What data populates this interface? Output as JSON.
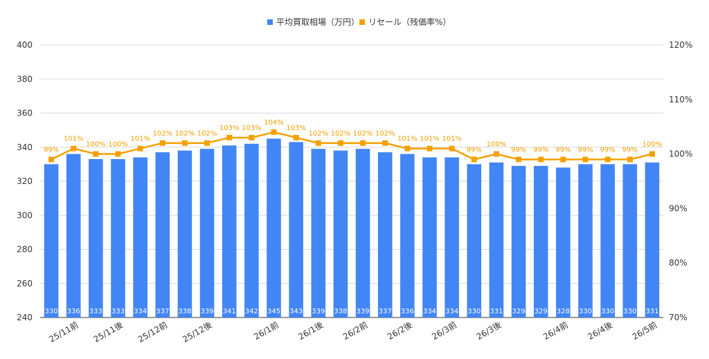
{
  "chart_data": {
    "type": "bar",
    "title": "",
    "legend": {
      "position": "top",
      "items": [
        {
          "label": "平均買取相場（万円）",
          "color": "#4285f4",
          "marker": "square"
        },
        {
          "label": "リセール（残価率%）",
          "color": "#f4a000",
          "marker": "square"
        }
      ]
    },
    "grid": true,
    "y_left": {
      "ticks": [
        "400",
        "380",
        "360",
        "340",
        "320",
        "300",
        "280",
        "260",
        "240"
      ],
      "range": [
        240,
        400
      ]
    },
    "y_right": {
      "ticks": [
        "120%",
        "110%",
        "100%",
        "90%",
        "80%",
        "70%"
      ],
      "range": [
        70,
        120
      ]
    },
    "x_tick_labels": [
      {
        "label": "25/11前",
        "index": 1
      },
      {
        "label": "25/11後",
        "index": 3
      },
      {
        "label": "25/12前",
        "index": 5
      },
      {
        "label": "25/12後",
        "index": 7
      },
      {
        "label": "26/1前",
        "index": 10
      },
      {
        "label": "26/1後",
        "index": 12
      },
      {
        "label": "26/2前",
        "index": 14
      },
      {
        "label": "26/2後",
        "index": 16
      },
      {
        "label": "26/3前",
        "index": 18
      },
      {
        "label": "26/3後",
        "index": 20
      },
      {
        "label": "26/4前",
        "index": 23
      },
      {
        "label": "26/4後",
        "index": 25
      },
      {
        "label": "26/5前",
        "index": 27
      }
    ],
    "series": [
      {
        "name": "平均買取相場（万円）",
        "kind": "bar",
        "color": "#4285f4",
        "values": [
          330,
          336,
          333,
          333,
          334,
          337,
          338,
          339,
          341,
          342,
          345,
          343,
          339,
          338,
          339,
          337,
          336,
          334,
          334,
          330,
          331,
          329,
          329,
          328,
          330,
          330,
          330,
          331
        ],
        "labels": [
          "330",
          "336",
          "333",
          "333",
          "334",
          "337",
          "338",
          "339",
          "341",
          "342",
          "345",
          "343",
          "339",
          "338",
          "339",
          "337",
          "336",
          "334",
          "334",
          "330",
          "331",
          "329",
          "329",
          "328",
          "330",
          "330",
          "330",
          "331"
        ]
      },
      {
        "name": "リセール（残価率%）",
        "kind": "line",
        "color": "#f4a000",
        "values": [
          99,
          101,
          100,
          100,
          101,
          102,
          102,
          102,
          103,
          103,
          104,
          103,
          102,
          102,
          102,
          102,
          101,
          101,
          101,
          99,
          100,
          99,
          99,
          99,
          99,
          99,
          99,
          100
        ],
        "labels": [
          "99%",
          "101%",
          "100%",
          "100%",
          "101%",
          "102%",
          "102%",
          "102%",
          "103%",
          "103%",
          "104%",
          "103%",
          "102%",
          "102%",
          "102%",
          "102%",
          "101%",
          "101%",
          "101%",
          "99%",
          "100%",
          "99%",
          "99%",
          "99%",
          "99%",
          "99%",
          "99%",
          "100%"
        ]
      }
    ]
  }
}
